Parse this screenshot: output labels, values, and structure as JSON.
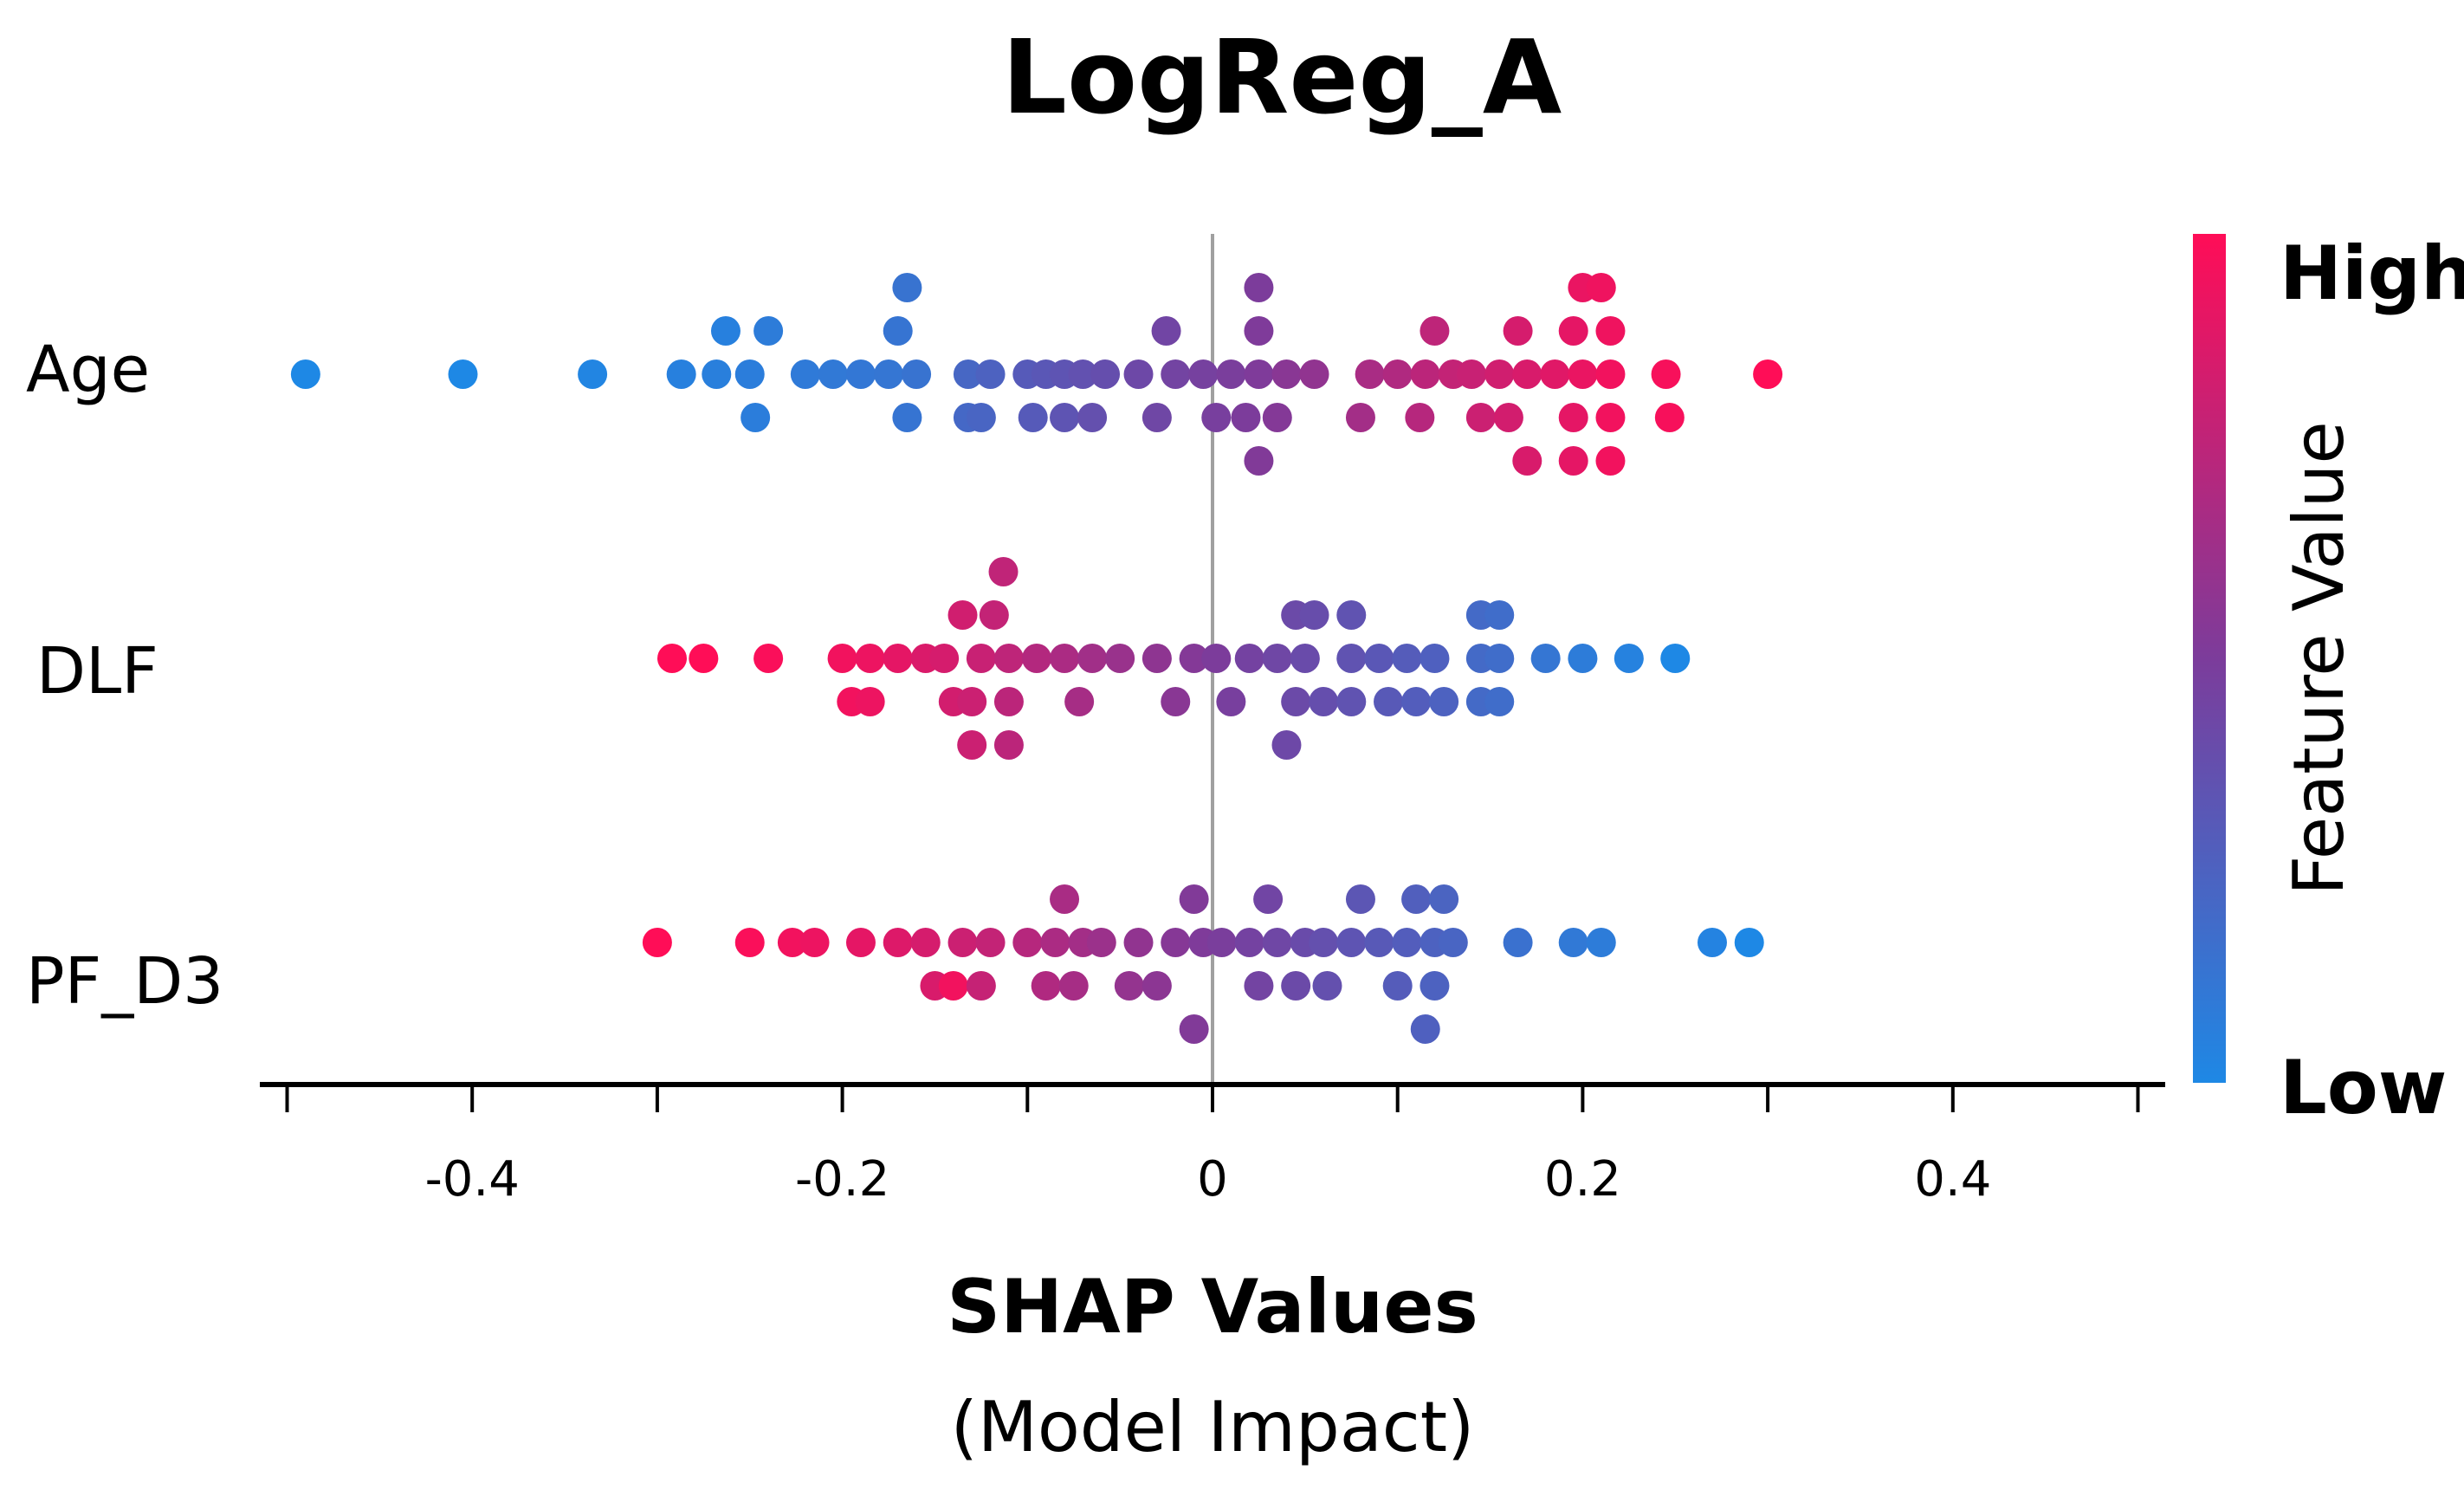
{
  "chart_data": {
    "type": "scatter",
    "subtype": "shap-beeswarm",
    "title": "LogReg_A",
    "xlabel": "SHAP Values",
    "xlabel_sub": "(Model Impact)",
    "ylabel": "",
    "xlim": [
      -0.5,
      0.5
    ],
    "xticks": [
      -0.4,
      -0.2,
      0,
      0.2,
      0.4
    ],
    "xtick_labels": [
      "-0.4",
      "-0.2",
      "0",
      "0.2",
      "0.4"
    ],
    "grid": false,
    "features": [
      "Age",
      "DLF",
      "PF_D3"
    ],
    "colorbar": {
      "title": "Feature Value",
      "high_label": "High",
      "low_label": "Low",
      "high_color": "#ff0d57",
      "low_color": "#1e88e5"
    },
    "series": [
      {
        "name": "Age",
        "points": [
          {
            "x": -0.49,
            "lane": 0,
            "v": 0.0
          },
          {
            "x": -0.405,
            "lane": 0,
            "v": 0.0
          },
          {
            "x": -0.335,
            "lane": 0,
            "v": 0.02
          },
          {
            "x": -0.287,
            "lane": 0,
            "v": 0.05
          },
          {
            "x": -0.268,
            "lane": 0,
            "v": 0.06
          },
          {
            "x": -0.263,
            "lane": -1,
            "v": 0.05
          },
          {
            "x": -0.25,
            "lane": 0,
            "v": 0.07
          },
          {
            "x": -0.247,
            "lane": 1,
            "v": 0.07
          },
          {
            "x": -0.24,
            "lane": -1,
            "v": 0.08
          },
          {
            "x": -0.22,
            "lane": 0,
            "v": 0.09
          },
          {
            "x": -0.205,
            "lane": 0,
            "v": 0.1
          },
          {
            "x": -0.19,
            "lane": 0,
            "v": 0.11
          },
          {
            "x": -0.175,
            "lane": 0,
            "v": 0.12
          },
          {
            "x": -0.17,
            "lane": -1,
            "v": 0.13
          },
          {
            "x": -0.165,
            "lane": -2,
            "v": 0.14
          },
          {
            "x": -0.165,
            "lane": 1,
            "v": 0.13
          },
          {
            "x": -0.16,
            "lane": 0,
            "v": 0.14
          },
          {
            "x": -0.132,
            "lane": 0,
            "v": 0.22
          },
          {
            "x": -0.132,
            "lane": 1,
            "v": 0.21
          },
          {
            "x": -0.125,
            "lane": 1,
            "v": 0.23
          },
          {
            "x": -0.12,
            "lane": 0,
            "v": 0.25
          },
          {
            "x": -0.1,
            "lane": 0,
            "v": 0.3
          },
          {
            "x": -0.097,
            "lane": 1,
            "v": 0.3
          },
          {
            "x": -0.09,
            "lane": 0,
            "v": 0.32
          },
          {
            "x": -0.08,
            "lane": 0,
            "v": 0.34
          },
          {
            "x": -0.08,
            "lane": 1,
            "v": 0.34
          },
          {
            "x": -0.07,
            "lane": 0,
            "v": 0.36
          },
          {
            "x": -0.065,
            "lane": 1,
            "v": 0.37
          },
          {
            "x": -0.058,
            "lane": 0,
            "v": 0.38
          },
          {
            "x": -0.04,
            "lane": 0,
            "v": 0.42
          },
          {
            "x": -0.03,
            "lane": 1,
            "v": 0.43
          },
          {
            "x": -0.025,
            "lane": -1,
            "v": 0.44
          },
          {
            "x": -0.02,
            "lane": 0,
            "v": 0.45
          },
          {
            "x": -0.005,
            "lane": 0,
            "v": 0.47
          },
          {
            "x": 0.002,
            "lane": 1,
            "v": 0.48
          },
          {
            "x": 0.01,
            "lane": 0,
            "v": 0.49
          },
          {
            "x": 0.018,
            "lane": 1,
            "v": 0.5
          },
          {
            "x": 0.025,
            "lane": -2,
            "v": 0.5
          },
          {
            "x": 0.025,
            "lane": -1,
            "v": 0.51
          },
          {
            "x": 0.025,
            "lane": 0,
            "v": 0.51
          },
          {
            "x": 0.025,
            "lane": 2,
            "v": 0.52
          },
          {
            "x": 0.035,
            "lane": 1,
            "v": 0.53
          },
          {
            "x": 0.04,
            "lane": 0,
            "v": 0.55
          },
          {
            "x": 0.055,
            "lane": 0,
            "v": 0.58
          },
          {
            "x": 0.08,
            "lane": 1,
            "v": 0.65
          },
          {
            "x": 0.085,
            "lane": 0,
            "v": 0.67
          },
          {
            "x": 0.1,
            "lane": 0,
            "v": 0.7
          },
          {
            "x": 0.112,
            "lane": 1,
            "v": 0.72
          },
          {
            "x": 0.115,
            "lane": 0,
            "v": 0.74
          },
          {
            "x": 0.12,
            "lane": -1,
            "v": 0.75
          },
          {
            "x": 0.13,
            "lane": 0,
            "v": 0.77
          },
          {
            "x": 0.14,
            "lane": 0,
            "v": 0.79
          },
          {
            "x": 0.145,
            "lane": 1,
            "v": 0.8
          },
          {
            "x": 0.155,
            "lane": 0,
            "v": 0.82
          },
          {
            "x": 0.16,
            "lane": 1,
            "v": 0.83
          },
          {
            "x": 0.165,
            "lane": -1,
            "v": 0.84
          },
          {
            "x": 0.17,
            "lane": 0,
            "v": 0.85
          },
          {
            "x": 0.17,
            "lane": 2,
            "v": 0.85
          },
          {
            "x": 0.185,
            "lane": 0,
            "v": 0.88
          },
          {
            "x": 0.195,
            "lane": -1,
            "v": 0.9
          },
          {
            "x": 0.195,
            "lane": 1,
            "v": 0.9
          },
          {
            "x": 0.195,
            "lane": 2,
            "v": 0.9
          },
          {
            "x": 0.2,
            "lane": -2,
            "v": 0.92
          },
          {
            "x": 0.2,
            "lane": 0,
            "v": 0.92
          },
          {
            "x": 0.21,
            "lane": -2,
            "v": 0.94
          },
          {
            "x": 0.215,
            "lane": -1,
            "v": 0.94
          },
          {
            "x": 0.215,
            "lane": 0,
            "v": 0.95
          },
          {
            "x": 0.215,
            "lane": 1,
            "v": 0.95
          },
          {
            "x": 0.215,
            "lane": 2,
            "v": 0.95
          },
          {
            "x": 0.245,
            "lane": 0,
            "v": 0.97
          },
          {
            "x": 0.247,
            "lane": 1,
            "v": 0.97
          },
          {
            "x": 0.3,
            "lane": 0,
            "v": 1.0
          }
        ]
      },
      {
        "name": "DLF",
        "points": [
          {
            "x": -0.292,
            "lane": 0,
            "v": 1.0
          },
          {
            "x": -0.275,
            "lane": 0,
            "v": 1.0
          },
          {
            "x": -0.24,
            "lane": 0,
            "v": 0.98
          },
          {
            "x": -0.2,
            "lane": 0,
            "v": 0.95
          },
          {
            "x": -0.195,
            "lane": 1,
            "v": 0.95
          },
          {
            "x": -0.185,
            "lane": 0,
            "v": 0.93
          },
          {
            "x": -0.185,
            "lane": 1,
            "v": 0.93
          },
          {
            "x": -0.17,
            "lane": 0,
            "v": 0.9
          },
          {
            "x": -0.155,
            "lane": 0,
            "v": 0.86
          },
          {
            "x": -0.145,
            "lane": 0,
            "v": 0.84
          },
          {
            "x": -0.14,
            "lane": 1,
            "v": 0.83
          },
          {
            "x": -0.135,
            "lane": -1,
            "v": 0.82
          },
          {
            "x": -0.13,
            "lane": 1,
            "v": 0.8
          },
          {
            "x": -0.13,
            "lane": 2,
            "v": 0.8
          },
          {
            "x": -0.125,
            "lane": 0,
            "v": 0.79
          },
          {
            "x": -0.118,
            "lane": -1,
            "v": 0.77
          },
          {
            "x": -0.113,
            "lane": -2,
            "v": 0.76
          },
          {
            "x": -0.11,
            "lane": 0,
            "v": 0.75
          },
          {
            "x": -0.11,
            "lane": 1,
            "v": 0.74
          },
          {
            "x": -0.11,
            "lane": 2,
            "v": 0.74
          },
          {
            "x": -0.095,
            "lane": 0,
            "v": 0.71
          },
          {
            "x": -0.08,
            "lane": 0,
            "v": 0.68
          },
          {
            "x": -0.072,
            "lane": 1,
            "v": 0.66
          },
          {
            "x": -0.065,
            "lane": 0,
            "v": 0.64
          },
          {
            "x": -0.05,
            "lane": 0,
            "v": 0.61
          },
          {
            "x": -0.03,
            "lane": 0,
            "v": 0.57
          },
          {
            "x": -0.02,
            "lane": 1,
            "v": 0.55
          },
          {
            "x": -0.01,
            "lane": 0,
            "v": 0.53
          },
          {
            "x": 0.002,
            "lane": 0,
            "v": 0.5
          },
          {
            "x": 0.01,
            "lane": 1,
            "v": 0.48
          },
          {
            "x": 0.02,
            "lane": 0,
            "v": 0.46
          },
          {
            "x": 0.035,
            "lane": 0,
            "v": 0.43
          },
          {
            "x": 0.04,
            "lane": 2,
            "v": 0.42
          },
          {
            "x": 0.045,
            "lane": -1,
            "v": 0.41
          },
          {
            "x": 0.045,
            "lane": 1,
            "v": 0.41
          },
          {
            "x": 0.05,
            "lane": 0,
            "v": 0.4
          },
          {
            "x": 0.055,
            "lane": -1,
            "v": 0.39
          },
          {
            "x": 0.06,
            "lane": 1,
            "v": 0.38
          },
          {
            "x": 0.075,
            "lane": -1,
            "v": 0.35
          },
          {
            "x": 0.075,
            "lane": 0,
            "v": 0.35
          },
          {
            "x": 0.075,
            "lane": 1,
            "v": 0.35
          },
          {
            "x": 0.09,
            "lane": 0,
            "v": 0.32
          },
          {
            "x": 0.095,
            "lane": 1,
            "v": 0.31
          },
          {
            "x": 0.105,
            "lane": 0,
            "v": 0.29
          },
          {
            "x": 0.11,
            "lane": 1,
            "v": 0.28
          },
          {
            "x": 0.12,
            "lane": 0,
            "v": 0.26
          },
          {
            "x": 0.125,
            "lane": 1,
            "v": 0.25
          },
          {
            "x": 0.145,
            "lane": -1,
            "v": 0.2
          },
          {
            "x": 0.145,
            "lane": 0,
            "v": 0.2
          },
          {
            "x": 0.145,
            "lane": 1,
            "v": 0.2
          },
          {
            "x": 0.155,
            "lane": -1,
            "v": 0.18
          },
          {
            "x": 0.155,
            "lane": 0,
            "v": 0.18
          },
          {
            "x": 0.155,
            "lane": 1,
            "v": 0.18
          },
          {
            "x": 0.18,
            "lane": 0,
            "v": 0.12
          },
          {
            "x": 0.2,
            "lane": 0,
            "v": 0.08
          },
          {
            "x": 0.225,
            "lane": 0,
            "v": 0.04
          },
          {
            "x": 0.25,
            "lane": 0,
            "v": 0.0
          }
        ]
      },
      {
        "name": "PF_D3",
        "points": [
          {
            "x": -0.3,
            "lane": 0,
            "v": 1.0
          },
          {
            "x": -0.25,
            "lane": 0,
            "v": 0.98
          },
          {
            "x": -0.227,
            "lane": 0,
            "v": 0.95
          },
          {
            "x": -0.215,
            "lane": 0,
            "v": 0.93
          },
          {
            "x": -0.19,
            "lane": 0,
            "v": 0.9
          },
          {
            "x": -0.17,
            "lane": 0,
            "v": 0.87
          },
          {
            "x": -0.155,
            "lane": 0,
            "v": 0.84
          },
          {
            "x": -0.15,
            "lane": 1,
            "v": 0.85
          },
          {
            "x": -0.14,
            "lane": 1,
            "v": 0.95
          },
          {
            "x": -0.135,
            "lane": 0,
            "v": 0.8
          },
          {
            "x": -0.125,
            "lane": 1,
            "v": 0.78
          },
          {
            "x": -0.12,
            "lane": 0,
            "v": 0.77
          },
          {
            "x": -0.1,
            "lane": 0,
            "v": 0.72
          },
          {
            "x": -0.09,
            "lane": 1,
            "v": 0.7
          },
          {
            "x": -0.085,
            "lane": 0,
            "v": 0.68
          },
          {
            "x": -0.08,
            "lane": -1,
            "v": 0.67
          },
          {
            "x": -0.075,
            "lane": 1,
            "v": 0.66
          },
          {
            "x": -0.07,
            "lane": 0,
            "v": 0.65
          },
          {
            "x": -0.06,
            "lane": 0,
            "v": 0.62
          },
          {
            "x": -0.045,
            "lane": 1,
            "v": 0.59
          },
          {
            "x": -0.04,
            "lane": 0,
            "v": 0.58
          },
          {
            "x": -0.03,
            "lane": 1,
            "v": 0.56
          },
          {
            "x": -0.02,
            "lane": 0,
            "v": 0.54
          },
          {
            "x": -0.01,
            "lane": -1,
            "v": 0.52
          },
          {
            "x": -0.005,
            "lane": 0,
            "v": 0.51
          },
          {
            "x": -0.01,
            "lane": 2,
            "v": 0.52
          },
          {
            "x": 0.005,
            "lane": 0,
            "v": 0.49
          },
          {
            "x": 0.02,
            "lane": 0,
            "v": 0.46
          },
          {
            "x": 0.025,
            "lane": 1,
            "v": 0.45
          },
          {
            "x": 0.03,
            "lane": -1,
            "v": 0.44
          },
          {
            "x": 0.035,
            "lane": 0,
            "v": 0.43
          },
          {
            "x": 0.045,
            "lane": 1,
            "v": 0.41
          },
          {
            "x": 0.05,
            "lane": 0,
            "v": 0.4
          },
          {
            "x": 0.06,
            "lane": 0,
            "v": 0.37
          },
          {
            "x": 0.062,
            "lane": 1,
            "v": 0.37
          },
          {
            "x": 0.075,
            "lane": 0,
            "v": 0.34
          },
          {
            "x": 0.08,
            "lane": -1,
            "v": 0.33
          },
          {
            "x": 0.09,
            "lane": 0,
            "v": 0.31
          },
          {
            "x": 0.1,
            "lane": 1,
            "v": 0.29
          },
          {
            "x": 0.105,
            "lane": 0,
            "v": 0.28
          },
          {
            "x": 0.11,
            "lane": -1,
            "v": 0.27
          },
          {
            "x": 0.115,
            "lane": 2,
            "v": 0.26
          },
          {
            "x": 0.12,
            "lane": 0,
            "v": 0.25
          },
          {
            "x": 0.12,
            "lane": 1,
            "v": 0.25
          },
          {
            "x": 0.125,
            "lane": -1,
            "v": 0.24
          },
          {
            "x": 0.13,
            "lane": 0,
            "v": 0.23
          },
          {
            "x": 0.165,
            "lane": 0,
            "v": 0.15
          },
          {
            "x": 0.195,
            "lane": 0,
            "v": 0.1
          },
          {
            "x": 0.21,
            "lane": 0,
            "v": 0.08
          },
          {
            "x": 0.27,
            "lane": 0,
            "v": 0.03
          },
          {
            "x": 0.29,
            "lane": 0,
            "v": 0.0
          }
        ]
      }
    ]
  }
}
